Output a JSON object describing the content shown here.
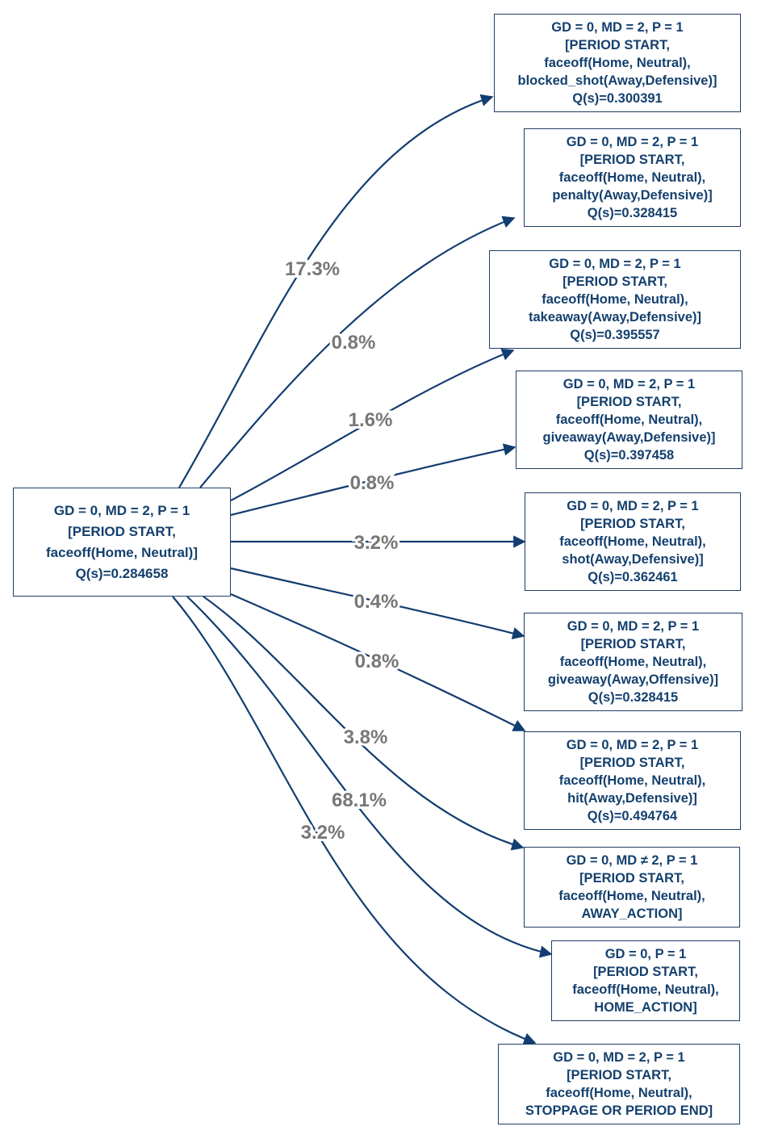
{
  "source": {
    "lines": [
      "GD = 0, MD = 2, P = 1",
      "[PERIOD START,",
      "faceoff(Home, Neutral)]",
      "Q(s)=0.284658"
    ]
  },
  "targets": [
    {
      "lines": [
        "GD = 0, MD = 2, P = 1",
        "[PERIOD START,",
        "faceoff(Home, Neutral),",
        "blocked_shot(Away,Defensive)]",
        "Q(s)=0.300391"
      ]
    },
    {
      "lines": [
        "GD = 0, MD = 2, P = 1",
        "[PERIOD START,",
        "faceoff(Home, Neutral),",
        "penalty(Away,Defensive)]",
        "Q(s)=0.328415"
      ]
    },
    {
      "lines": [
        "GD = 0, MD = 2, P = 1",
        "[PERIOD START,",
        "faceoff(Home, Neutral),",
        "takeaway(Away,Defensive)]",
        "Q(s)=0.395557"
      ]
    },
    {
      "lines": [
        "GD = 0, MD = 2, P = 1",
        "[PERIOD START,",
        "faceoff(Home, Neutral),",
        "giveaway(Away,Defensive)]",
        "Q(s)=0.397458"
      ]
    },
    {
      "lines": [
        "GD = 0, MD = 2, P = 1",
        "[PERIOD START,",
        "faceoff(Home, Neutral),",
        "shot(Away,Defensive)]",
        "Q(s)=0.362461"
      ]
    },
    {
      "lines": [
        "GD = 0, MD = 2, P = 1",
        "[PERIOD START,",
        "faceoff(Home, Neutral),",
        "giveaway(Away,Offensive)]",
        "Q(s)=0.328415"
      ]
    },
    {
      "lines": [
        "GD = 0, MD = 2, P = 1",
        "[PERIOD START,",
        "faceoff(Home, Neutral),",
        "hit(Away,Defensive)]",
        "Q(s)=0.494764"
      ]
    },
    {
      "lines": [
        "GD = 0, MD ≠ 2, P = 1",
        "[PERIOD START,",
        "faceoff(Home, Neutral),",
        "AWAY_ACTION]"
      ]
    },
    {
      "lines": [
        "GD = 0, P = 1",
        "[PERIOD START,",
        "faceoff(Home, Neutral),",
        "HOME_ACTION]"
      ]
    },
    {
      "lines": [
        "GD = 0, MD = 2, P = 1",
        "[PERIOD START,",
        "faceoff(Home, Neutral),",
        "STOPPAGE OR PERIOD END]"
      ]
    }
  ],
  "edge_labels": [
    "17.3%",
    "0.8%",
    "1.6%",
    "0.8%",
    "3.2%",
    "0.4%",
    "0.8%",
    "3.8%",
    "68.1%",
    "3.2%"
  ],
  "colors": {
    "edge": "#123d70",
    "node_text": "#14406e",
    "node_border": "#1f3d66",
    "label": "#777777"
  }
}
